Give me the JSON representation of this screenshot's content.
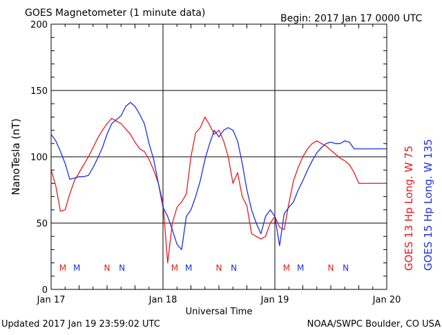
{
  "header": {
    "title": "GOES Magnetometer (1 minute data)",
    "begin": "Begin:  2017 Jan 17 0000 UTC"
  },
  "footer": {
    "updated": "Updated 2017 Jan 19 23:59:02 UTC",
    "credit": "NOAA/SWPC Boulder, CO USA"
  },
  "colors": {
    "red_series": "#e8191c",
    "blue_series": "#1a2ee8",
    "grid": "#000000"
  },
  "chart_data": {
    "type": "line",
    "title": "GOES Magnetometer (1 minute data)",
    "xlabel": "Universal Time",
    "ylabel": "NanoTesla (nT)",
    "ylim": [
      0,
      200
    ],
    "xlim": [
      "2017-01-17 00:00",
      "2017-01-20 00:00"
    ],
    "y_ticks": [
      0,
      50,
      100,
      150,
      200
    ],
    "x_ticks": [
      "Jan 17",
      "Jan 18",
      "Jan 19",
      "Jan 20"
    ],
    "grid": true,
    "legend_position": "right, rotated vertical",
    "series": [
      {
        "name": "GOES 13 Hp  Long. W 75",
        "color": "#e8191c",
        "x_hours": [
          0,
          1,
          2,
          3,
          4,
          5,
          6,
          7,
          8,
          9,
          10,
          11,
          12,
          13,
          14,
          15,
          16,
          17,
          18,
          19,
          20,
          21,
          22,
          23,
          24,
          25,
          26,
          27,
          28,
          29,
          30,
          31,
          32,
          33,
          34,
          35,
          36,
          37,
          38,
          39,
          40,
          41,
          42,
          43,
          44,
          45,
          46,
          47,
          48,
          49,
          50,
          51,
          52,
          53,
          54,
          55,
          56,
          57,
          58,
          59,
          60,
          61,
          62,
          63,
          64,
          65,
          66,
          67,
          68,
          69,
          70,
          71,
          72
        ],
        "values": [
          90,
          78,
          59,
          60,
          72,
          82,
          88,
          94,
          100,
          107,
          114,
          120,
          125,
          129,
          127,
          125,
          121,
          117,
          111,
          106,
          104,
          98,
          90,
          80,
          65,
          20,
          50,
          62,
          66,
          72,
          100,
          118,
          122,
          130,
          124,
          117,
          120,
          112,
          100,
          80,
          88,
          70,
          63,
          42,
          40,
          38,
          40,
          50,
          55,
          47,
          45,
          65,
          82,
          92,
          100,
          106,
          110,
          112,
          110,
          108,
          105,
          102,
          99,
          97,
          94,
          88,
          80,
          80,
          80,
          80,
          80,
          80,
          80
        ]
      },
      {
        "name": "GOES 15 Hp  Long. W 135",
        "color": "#1a2ee8",
        "x_hours": [
          0,
          1,
          2,
          3,
          4,
          5,
          6,
          7,
          8,
          9,
          10,
          11,
          12,
          13,
          14,
          15,
          16,
          17,
          18,
          19,
          20,
          21,
          22,
          23,
          24,
          25,
          26,
          27,
          28,
          29,
          30,
          31,
          32,
          33,
          34,
          35,
          36,
          37,
          38,
          39,
          40,
          41,
          42,
          43,
          44,
          45,
          46,
          47,
          48,
          49,
          50,
          51,
          52,
          53,
          54,
          55,
          56,
          57,
          58,
          59,
          60,
          61,
          62,
          63,
          64,
          65,
          66,
          67,
          68,
          69,
          70,
          71,
          72
        ],
        "values": [
          117,
          112,
          104,
          95,
          83,
          84,
          85,
          85,
          86,
          92,
          99,
          107,
          117,
          125,
          128,
          131,
          138,
          141,
          138,
          132,
          125,
          110,
          98,
          80,
          62,
          55,
          45,
          34,
          30,
          55,
          60,
          70,
          82,
          98,
          110,
          120,
          115,
          120,
          122,
          120,
          112,
          95,
          75,
          60,
          50,
          42,
          55,
          60,
          55,
          33,
          57,
          62,
          66,
          75,
          82,
          90,
          97,
          103,
          107,
          110,
          111,
          110,
          110,
          112,
          111,
          106,
          106,
          106,
          106,
          106,
          106,
          106,
          106
        ]
      }
    ],
    "annotations": [
      {
        "text": "M",
        "series": "GOES 13 Hp  Long. W 75",
        "x_hours": 2.5
      },
      {
        "text": "M",
        "series": "GOES 15 Hp  Long. W 135",
        "x_hours": 5.5
      },
      {
        "text": "N",
        "series": "GOES 13 Hp  Long. W 75",
        "x_hours": 12
      },
      {
        "text": "N",
        "series": "GOES 15 Hp  Long. W 135",
        "x_hours": 15.2
      },
      {
        "text": "M",
        "series": "GOES 13 Hp  Long. W 75",
        "x_hours": 26.5
      },
      {
        "text": "M",
        "series": "GOES 15 Hp  Long. W 135",
        "x_hours": 29.5
      },
      {
        "text": "N",
        "series": "GOES 13 Hp  Long. W 75",
        "x_hours": 36
      },
      {
        "text": "N",
        "series": "GOES 15 Hp  Long. W 135",
        "x_hours": 39.2
      },
      {
        "text": "M",
        "series": "GOES 13 Hp  Long. W 75",
        "x_hours": 50.5
      },
      {
        "text": "M",
        "series": "GOES 15 Hp  Long. W 135",
        "x_hours": 53.5
      },
      {
        "text": "N",
        "series": "GOES 13 Hp  Long. W 75",
        "x_hours": 60
      },
      {
        "text": "N",
        "series": "GOES 15 Hp  Long. W 135",
        "x_hours": 63.2
      }
    ]
  }
}
